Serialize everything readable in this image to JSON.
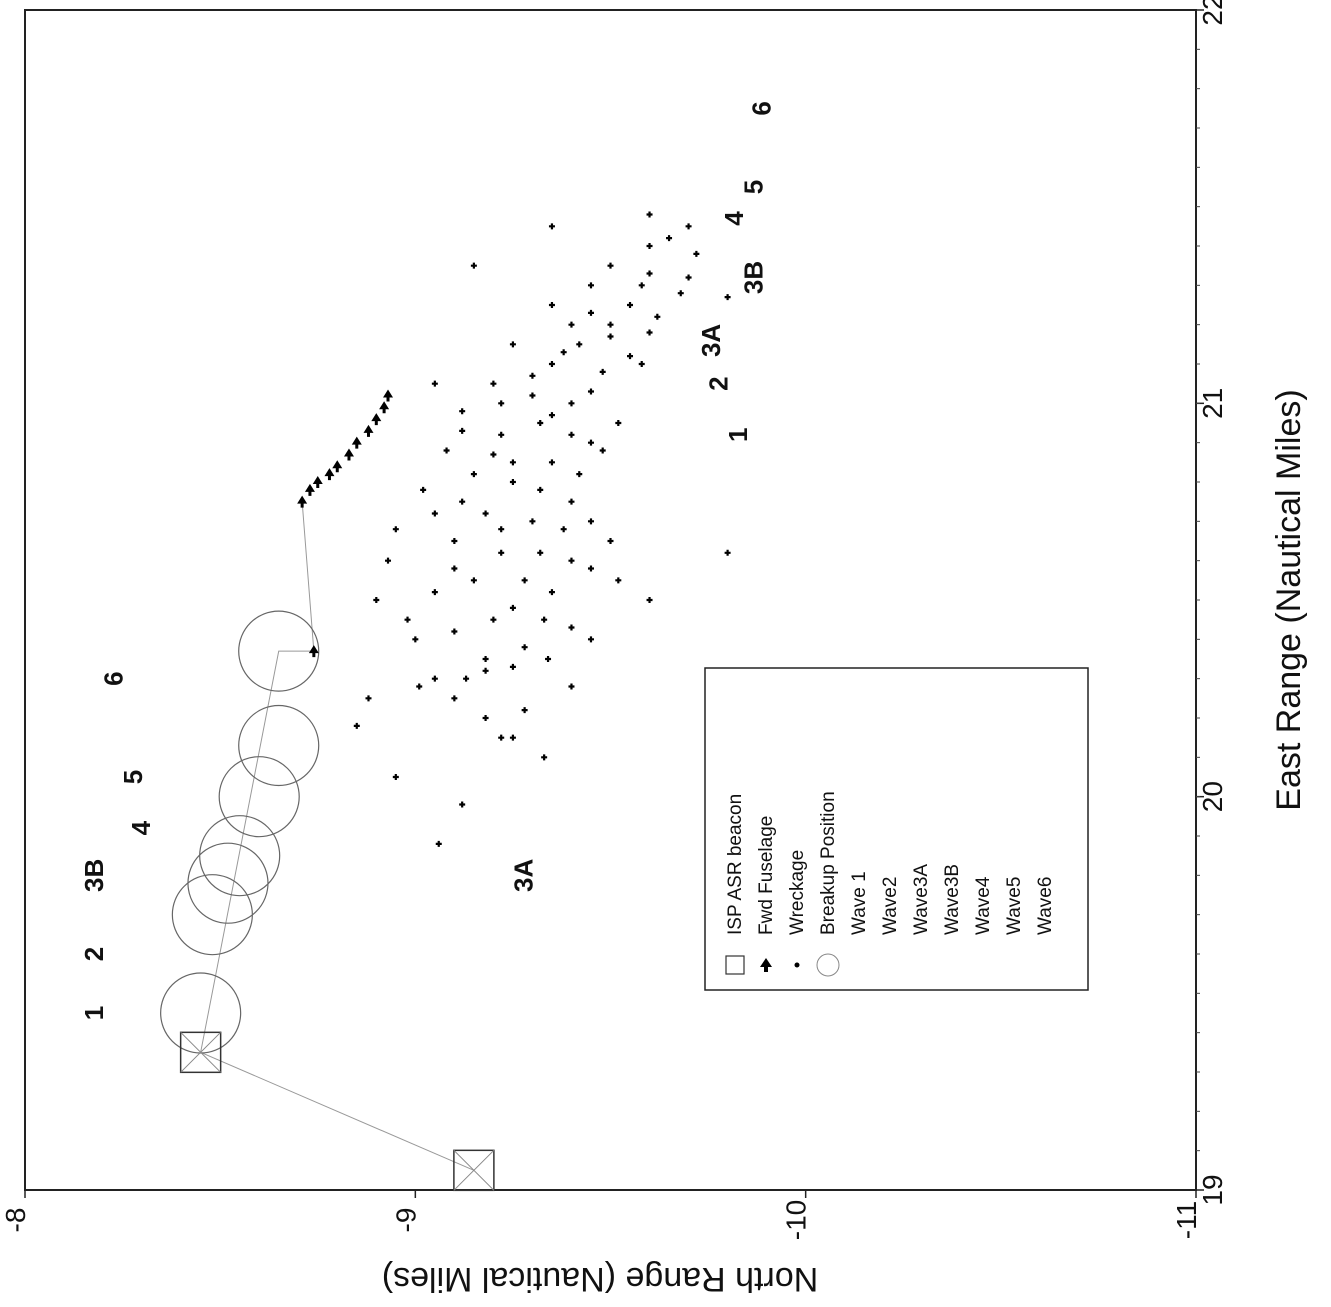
{
  "chart_data": {
    "type": "scatter",
    "xlabel": "East Range (Nautical Miles)",
    "ylabel": "North Range (Nautical Miles)",
    "x_range": [
      19,
      22
    ],
    "y_range": [
      -11,
      -8
    ],
    "x_ticks": [
      "19",
      "20",
      "21",
      "22"
    ],
    "y_ticks": [
      "-8",
      "-9",
      "-10",
      "-11"
    ],
    "orientation": "page rotated 90 degrees clockwise",
    "grid": false,
    "legend_position": "lower-middle",
    "legend": [
      {
        "label": "ISP ASR beacon",
        "symbol": "square-x-icon"
      },
      {
        "label": "Fwd Fuselage",
        "symbol": "arrow-up-icon"
      },
      {
        "label": "Wreckage",
        "symbol": "dot-icon"
      },
      {
        "label": "Breakup Position",
        "symbol": "circle-icon"
      },
      {
        "label": "Wave 1",
        "symbol": ""
      },
      {
        "label": "Wave2",
        "symbol": ""
      },
      {
        "label": "Wave3A",
        "symbol": ""
      },
      {
        "label": "Wave3B",
        "symbol": ""
      },
      {
        "label": "Wave4",
        "symbol": ""
      },
      {
        "label": "Wave5",
        "symbol": ""
      },
      {
        "label": "Wave6",
        "symbol": ""
      }
    ],
    "series": [
      {
        "name": "ISP ASR beacon",
        "points": [
          [
            19.05,
            -9.15
          ],
          [
            19.35,
            -8.45
          ]
        ]
      },
      {
        "name": "Breakup Position",
        "points": [
          [
            19.45,
            -8.45
          ],
          [
            19.7,
            -8.48
          ],
          [
            19.78,
            -8.52
          ],
          [
            19.85,
            -8.55
          ],
          [
            20.0,
            -8.6
          ],
          [
            20.13,
            -8.65
          ],
          [
            20.37,
            -8.65
          ]
        ]
      },
      {
        "name": "Fwd Fuselage",
        "points": [
          [
            20.37,
            -8.74
          ],
          [
            20.75,
            -8.71
          ],
          [
            20.78,
            -8.73
          ],
          [
            20.8,
            -8.75
          ],
          [
            20.82,
            -8.78
          ],
          [
            20.84,
            -8.8
          ],
          [
            20.87,
            -8.83
          ],
          [
            20.9,
            -8.85
          ],
          [
            20.93,
            -8.88
          ],
          [
            20.96,
            -8.9
          ],
          [
            20.99,
            -8.92
          ],
          [
            21.02,
            -8.93
          ]
        ]
      },
      {
        "name": "Wreckage",
        "points": [
          [
            19.88,
            -9.06
          ],
          [
            19.98,
            -9.12
          ],
          [
            20.05,
            -8.95
          ],
          [
            20.15,
            -9.22
          ],
          [
            20.18,
            -8.85
          ],
          [
            20.25,
            -8.88
          ],
          [
            20.28,
            -9.01
          ],
          [
            20.3,
            -9.13
          ],
          [
            20.33,
            -9.25
          ],
          [
            20.35,
            -9.34
          ],
          [
            20.4,
            -9.0
          ],
          [
            20.42,
            -9.1
          ],
          [
            20.45,
            -9.2
          ],
          [
            20.45,
            -9.33
          ],
          [
            20.5,
            -8.9
          ],
          [
            20.52,
            -9.05
          ],
          [
            20.55,
            -9.15
          ],
          [
            20.55,
            -9.28
          ],
          [
            20.6,
            -8.93
          ],
          [
            20.6,
            -9.4
          ],
          [
            20.62,
            -9.22
          ],
          [
            20.65,
            -9.1
          ],
          [
            20.68,
            -8.95
          ],
          [
            20.7,
            -9.3
          ],
          [
            20.72,
            -9.18
          ],
          [
            20.75,
            -9.4
          ],
          [
            20.78,
            -9.02
          ],
          [
            20.8,
            -9.25
          ],
          [
            20.82,
            -9.15
          ],
          [
            20.85,
            -9.35
          ],
          [
            20.88,
            -9.08
          ],
          [
            20.9,
            -9.45
          ],
          [
            20.92,
            -9.22
          ],
          [
            20.95,
            -9.32
          ],
          [
            20.98,
            -9.12
          ],
          [
            21.0,
            -9.4
          ],
          [
            21.02,
            -9.3
          ],
          [
            21.05,
            -9.2
          ],
          [
            21.08,
            -9.48
          ],
          [
            21.1,
            -9.35
          ],
          [
            21.12,
            -9.55
          ],
          [
            21.15,
            -9.42
          ],
          [
            21.18,
            -9.6
          ],
          [
            21.2,
            -9.5
          ],
          [
            21.22,
            -9.62
          ],
          [
            21.25,
            -9.35
          ],
          [
            21.28,
            -9.68
          ],
          [
            21.3,
            -9.58
          ],
          [
            21.35,
            -9.15
          ],
          [
            21.35,
            -9.5
          ],
          [
            21.38,
            -9.72
          ],
          [
            21.45,
            -9.35
          ],
          [
            21.48,
            -9.6
          ],
          [
            21.32,
            -9.7
          ],
          [
            21.27,
            -9.8
          ],
          [
            20.1,
            -9.33
          ],
          [
            20.15,
            -9.25
          ],
          [
            20.2,
            -9.18
          ],
          [
            20.22,
            -9.28
          ],
          [
            20.28,
            -9.4
          ],
          [
            20.32,
            -9.18
          ],
          [
            20.38,
            -9.28
          ],
          [
            20.43,
            -9.4
          ],
          [
            20.48,
            -9.25
          ],
          [
            20.52,
            -9.35
          ],
          [
            20.58,
            -9.1
          ],
          [
            20.62,
            -9.32
          ],
          [
            20.68,
            -9.22
          ],
          [
            20.72,
            -9.05
          ],
          [
            20.78,
            -9.32
          ],
          [
            20.82,
            -9.42
          ],
          [
            20.87,
            -9.2
          ],
          [
            20.93,
            -9.12
          ],
          [
            20.97,
            -9.35
          ],
          [
            21.03,
            -9.45
          ],
          [
            21.07,
            -9.3
          ],
          [
            21.13,
            -9.38
          ],
          [
            21.17,
            -9.5
          ],
          [
            21.23,
            -9.45
          ],
          [
            21.33,
            -9.6
          ],
          [
            20.5,
            -9.6
          ],
          [
            20.3,
            -9.05
          ],
          [
            20.65,
            -9.5
          ],
          [
            20.75,
            -9.12
          ],
          [
            21.05,
            -9.05
          ],
          [
            20.95,
            -9.52
          ],
          [
            20.55,
            -9.52
          ],
          [
            20.4,
            -9.45
          ],
          [
            20.7,
            -9.45
          ],
          [
            21.15,
            -9.25
          ],
          [
            20.85,
            -9.25
          ],
          [
            20.25,
            -9.1
          ],
          [
            20.62,
            -9.8
          ],
          [
            20.35,
            -9.18
          ],
          [
            20.45,
            -8.98
          ],
          [
            20.58,
            -9.45
          ],
          [
            20.68,
            -9.38
          ],
          [
            20.88,
            -9.48
          ],
          [
            20.92,
            -9.4
          ],
          [
            21.0,
            -9.22
          ],
          [
            21.1,
            -9.58
          ],
          [
            21.2,
            -9.4
          ],
          [
            21.25,
            -9.55
          ],
          [
            21.3,
            -9.45
          ],
          [
            21.4,
            -9.6
          ],
          [
            21.42,
            -9.65
          ],
          [
            21.45,
            -9.7
          ]
        ]
      }
    ],
    "wave_labels_left": [
      {
        "text": "1",
        "x": 19.45,
        "y": -8.2
      },
      {
        "text": "2",
        "x": 19.6,
        "y": -8.2
      },
      {
        "text": "3B",
        "x": 19.8,
        "y": -8.2
      },
      {
        "text": "4",
        "x": 19.92,
        "y": -8.32
      },
      {
        "text": "5",
        "x": 20.05,
        "y": -8.3
      },
      {
        "text": "6",
        "x": 20.3,
        "y": -8.25
      },
      {
        "text": "3A",
        "x": 19.8,
        "y": -9.3
      }
    ],
    "wave_labels_right": [
      {
        "text": "1",
        "x": 20.92,
        "y": -9.85
      },
      {
        "text": "2",
        "x": 21.05,
        "y": -9.8
      },
      {
        "text": "3A",
        "x": 21.16,
        "y": -9.78
      },
      {
        "text": "3B",
        "x": 21.32,
        "y": -9.89
      },
      {
        "text": "4",
        "x": 21.47,
        "y": -9.84
      },
      {
        "text": "5",
        "x": 21.55,
        "y": -9.89
      },
      {
        "text": "6",
        "x": 21.75,
        "y": -9.91
      }
    ]
  }
}
